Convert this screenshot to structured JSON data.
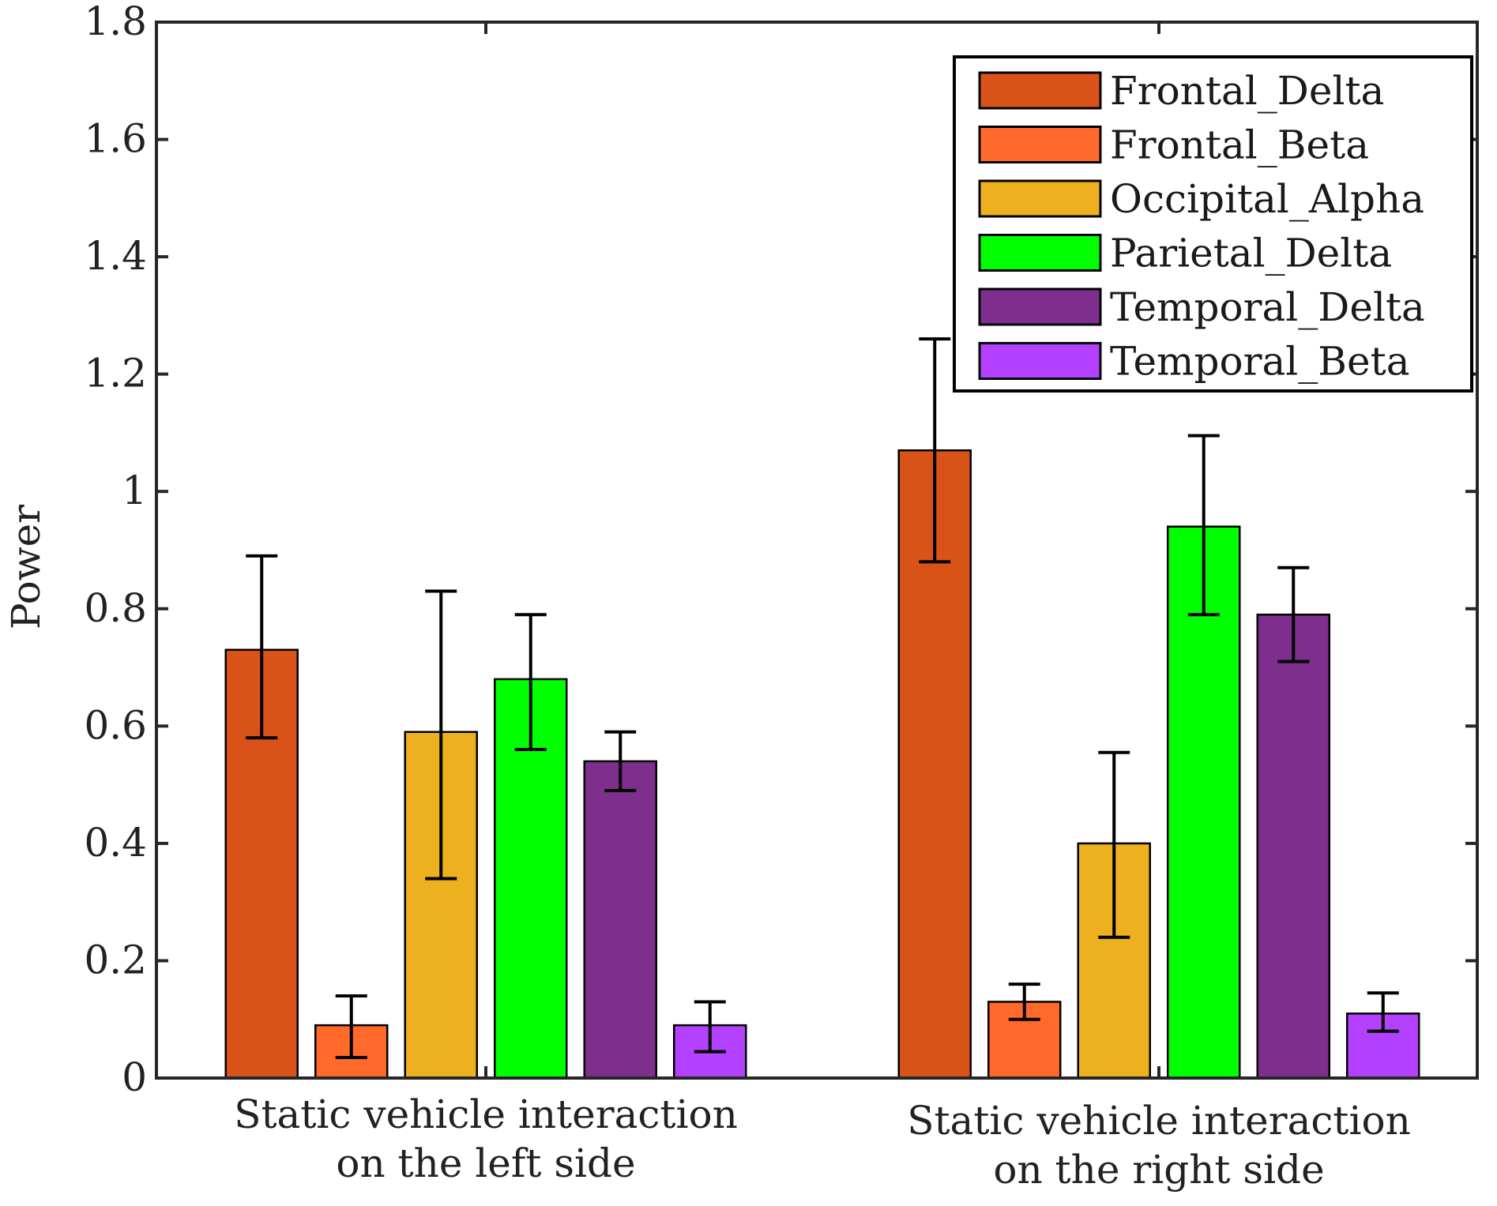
{
  "chart_data": {
    "type": "bar",
    "title": "",
    "xlabel": "",
    "ylabel": "Power",
    "ylim": [
      0,
      1.8
    ],
    "yticks": [
      0,
      0.2,
      0.4,
      0.6,
      0.8,
      1,
      1.2,
      1.4,
      1.6,
      1.8
    ],
    "ytick_labels": [
      "0",
      "0.2",
      "0.4",
      "0.6",
      "0.8",
      "1",
      "1.2",
      "1.4",
      "1.6",
      "1.8"
    ],
    "categories": [
      [
        "Static vehicle interaction",
        "on the left side"
      ],
      [
        "Static vehicle interaction",
        "on the right side"
      ]
    ],
    "legend_position": "top-right",
    "series": [
      {
        "name": "Frontal_Delta",
        "color": "#D95319",
        "values": [
          0.73,
          1.07
        ],
        "err_low": [
          0.58,
          0.88
        ],
        "err_high": [
          0.89,
          1.26
        ]
      },
      {
        "name": "Frontal_Beta",
        "color": "#FF6A2A",
        "values": [
          0.09,
          0.13
        ],
        "err_low": [
          0.035,
          0.1
        ],
        "err_high": [
          0.14,
          0.16
        ]
      },
      {
        "name": "Occipital_Alpha",
        "color": "#EDB120",
        "values": [
          0.59,
          0.4
        ],
        "err_low": [
          0.34,
          0.24
        ],
        "err_high": [
          0.83,
          0.555
        ]
      },
      {
        "name": "Parietal_Delta",
        "color": "#00FF00",
        "values": [
          0.68,
          0.94
        ],
        "err_low": [
          0.56,
          0.79
        ],
        "err_high": [
          0.79,
          1.095
        ]
      },
      {
        "name": "Temporal_Delta",
        "color": "#7E2F8E",
        "values": [
          0.54,
          0.79
        ],
        "err_low": [
          0.49,
          0.71
        ],
        "err_high": [
          0.59,
          0.87
        ]
      },
      {
        "name": "Temporal_Beta",
        "color": "#B441FF",
        "values": [
          0.09,
          0.11
        ],
        "err_low": [
          0.045,
          0.08
        ],
        "err_high": [
          0.13,
          0.145
        ]
      }
    ]
  }
}
